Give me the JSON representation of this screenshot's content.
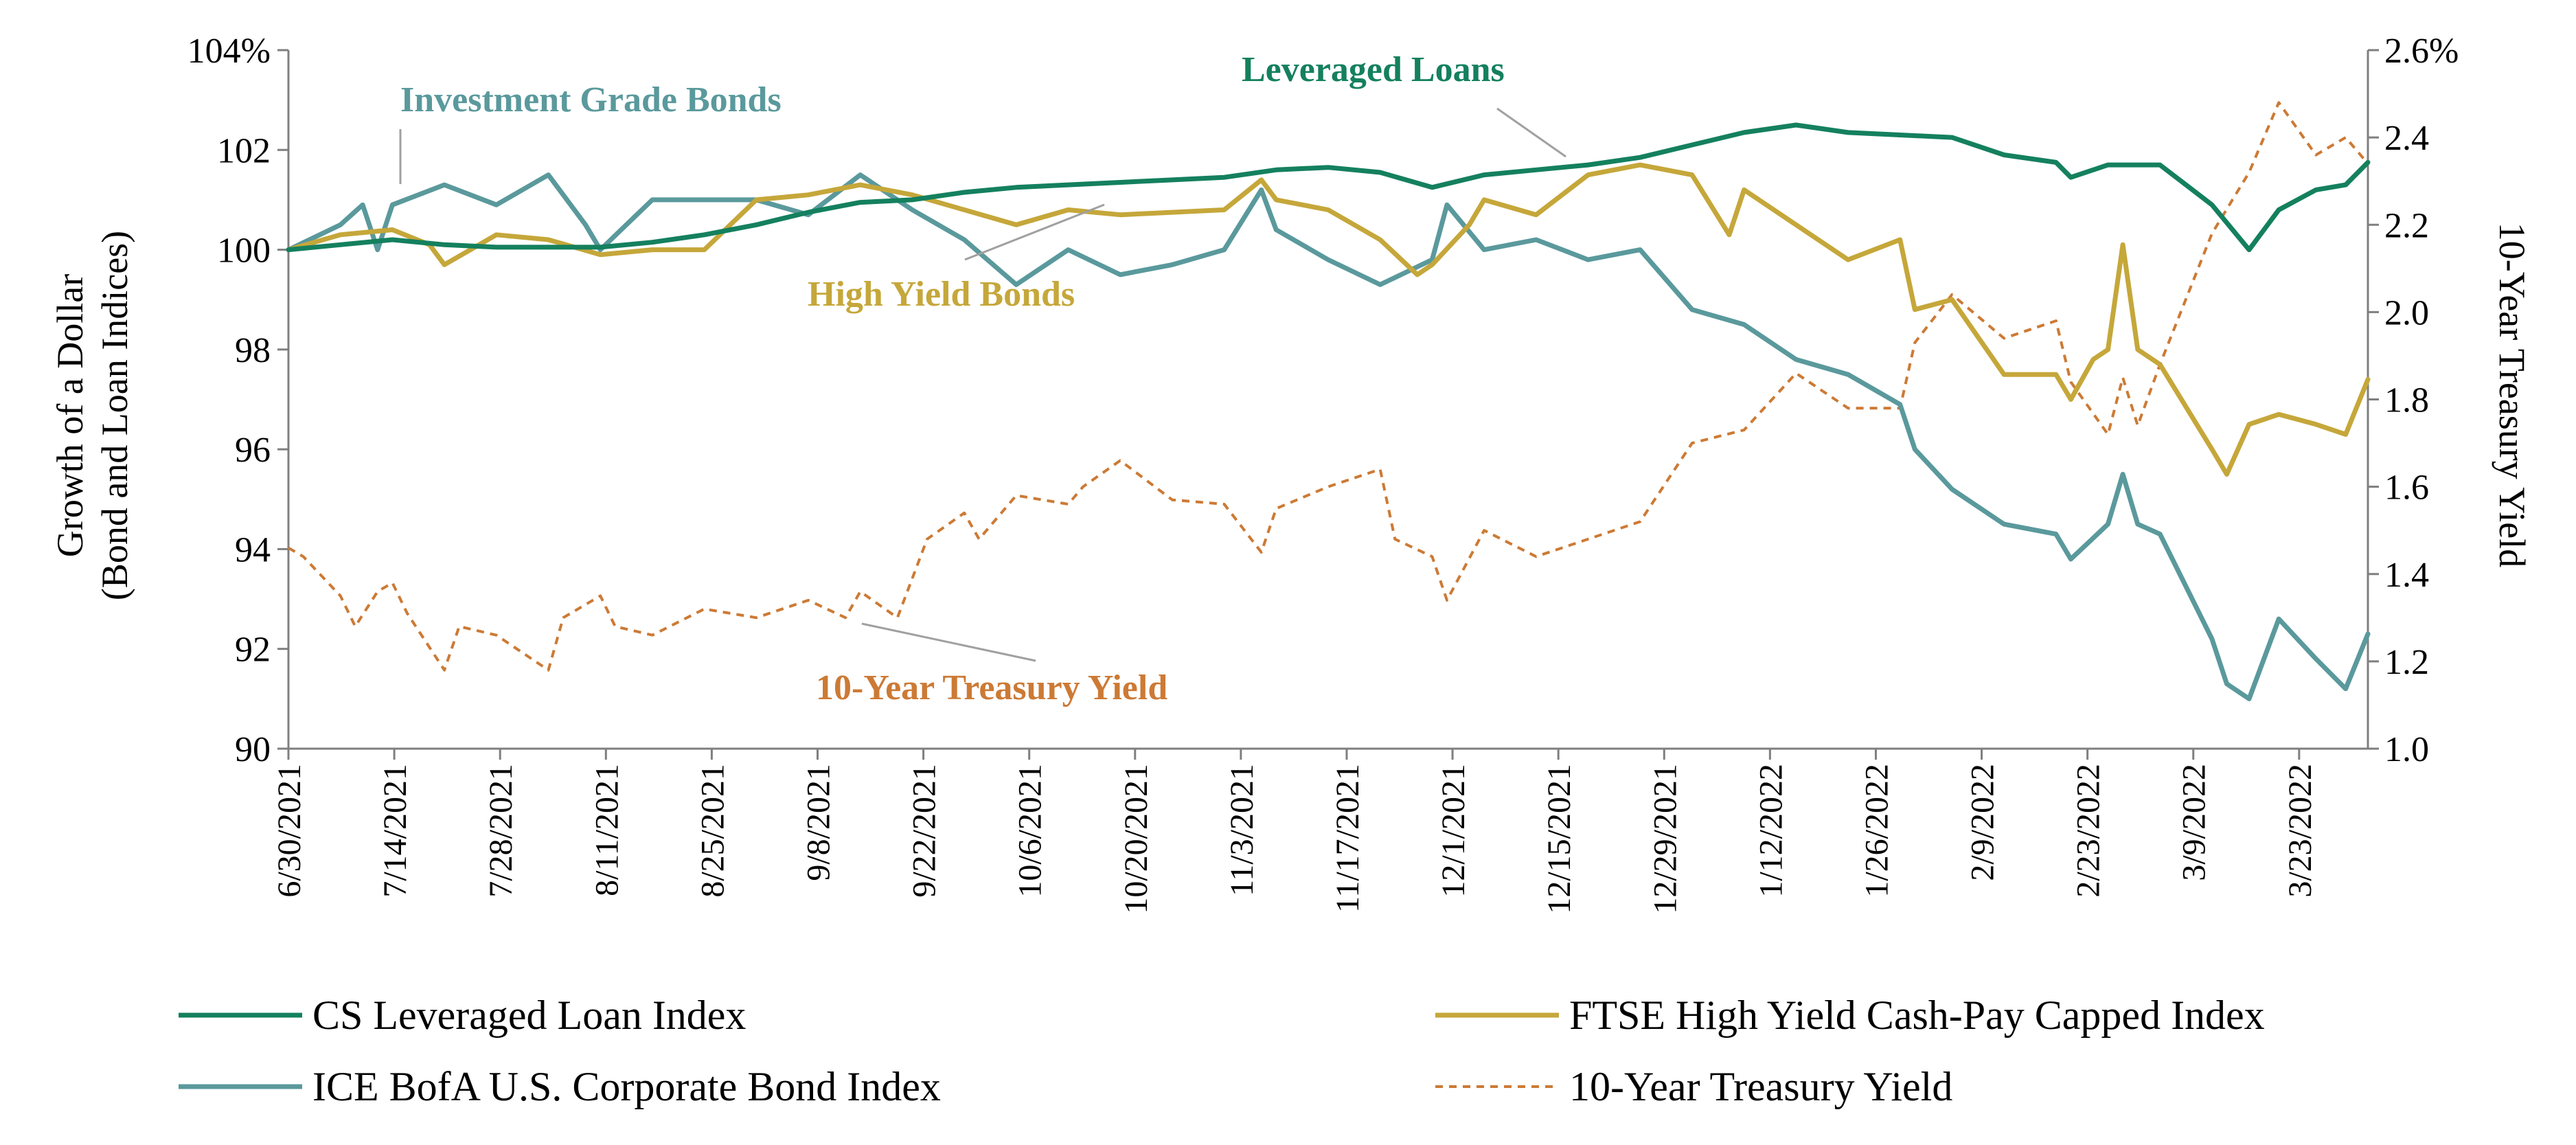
{
  "chart_data": {
    "type": "line",
    "x_tick_labels": [
      "6/30/2021",
      "7/14/2021",
      "7/28/2021",
      "8/11/2021",
      "8/25/2021",
      "9/8/2021",
      "9/22/2021",
      "10/6/2021",
      "10/20/2021",
      "11/3/2021",
      "11/17/2021",
      "12/1/2021",
      "12/15/2021",
      "12/29/2021",
      "1/12/2022",
      "1/26/2022",
      "2/9/2022",
      "2/23/2022",
      "3/9/2022",
      "3/23/2022"
    ],
    "x_range": [
      "2021-06-30",
      "2022-04-06"
    ],
    "y_left": {
      "label_lines": [
        "Growth of a Dollar",
        "(Bond and Loan Indices)"
      ],
      "ticks": [
        90,
        92,
        94,
        96,
        98,
        100,
        102,
        104
      ],
      "tick_labels": [
        "90",
        "92",
        "94",
        "96",
        "98",
        "100",
        "102",
        "104%"
      ],
      "range": [
        90,
        104
      ]
    },
    "y_right": {
      "label": "10-Year Treasury Yield",
      "ticks": [
        1.0,
        1.2,
        1.4,
        1.6,
        1.8,
        2.0,
        2.2,
        2.4,
        2.6
      ],
      "tick_labels": [
        "1.0",
        "1.2",
        "1.4",
        "1.6",
        "1.8",
        "2.0",
        "2.2",
        "2.4",
        "2.6%"
      ],
      "range": [
        1.0,
        2.6
      ]
    },
    "grid": false,
    "legend_position": "bottom",
    "series": [
      {
        "name": "CS Leveraged Loan Index",
        "axis": "left",
        "color": "#14805e",
        "style": "solid",
        "annotation": "Leveraged Loans",
        "points": [
          [
            "2021-06-30",
            100.0
          ],
          [
            "2021-07-07",
            100.1
          ],
          [
            "2021-07-14",
            100.2
          ],
          [
            "2021-07-21",
            100.1
          ],
          [
            "2021-07-28",
            100.05
          ],
          [
            "2021-08-04",
            100.05
          ],
          [
            "2021-08-11",
            100.05
          ],
          [
            "2021-08-18",
            100.15
          ],
          [
            "2021-08-25",
            100.3
          ],
          [
            "2021-09-01",
            100.5
          ],
          [
            "2021-09-08",
            100.75
          ],
          [
            "2021-09-15",
            100.95
          ],
          [
            "2021-09-22",
            101.0
          ],
          [
            "2021-09-29",
            101.15
          ],
          [
            "2021-10-06",
            101.25
          ],
          [
            "2021-10-13",
            101.3
          ],
          [
            "2021-10-20",
            101.35
          ],
          [
            "2021-10-27",
            101.4
          ],
          [
            "2021-11-03",
            101.45
          ],
          [
            "2021-11-10",
            101.6
          ],
          [
            "2021-11-17",
            101.65
          ],
          [
            "2021-11-24",
            101.55
          ],
          [
            "2021-12-01",
            101.25
          ],
          [
            "2021-12-08",
            101.5
          ],
          [
            "2021-12-15",
            101.6
          ],
          [
            "2021-12-22",
            101.7
          ],
          [
            "2021-12-29",
            101.85
          ],
          [
            "2022-01-05",
            102.1
          ],
          [
            "2022-01-12",
            102.35
          ],
          [
            "2022-01-19",
            102.5
          ],
          [
            "2022-01-26",
            102.35
          ],
          [
            "2022-02-02",
            102.3
          ],
          [
            "2022-02-09",
            102.25
          ],
          [
            "2022-02-16",
            101.9
          ],
          [
            "2022-02-23",
            101.75
          ],
          [
            "2022-02-25",
            101.45
          ],
          [
            "2022-03-02",
            101.7
          ],
          [
            "2022-03-09",
            101.7
          ],
          [
            "2022-03-16",
            100.9
          ],
          [
            "2022-03-21",
            100.0
          ],
          [
            "2022-03-25",
            100.8
          ],
          [
            "2022-03-30",
            101.2
          ],
          [
            "2022-04-03",
            101.3
          ],
          [
            "2022-04-06",
            101.75
          ]
        ]
      },
      {
        "name": "FTSE High Yield Cash-Pay Capped Index",
        "axis": "left",
        "color": "#c5a73a",
        "style": "solid",
        "annotation": "High Yield Bonds",
        "points": [
          [
            "2021-06-30",
            100.0
          ],
          [
            "2021-07-07",
            100.3
          ],
          [
            "2021-07-14",
            100.4
          ],
          [
            "2021-07-19",
            100.1
          ],
          [
            "2021-07-21",
            99.7
          ],
          [
            "2021-07-28",
            100.3
          ],
          [
            "2021-08-04",
            100.2
          ],
          [
            "2021-08-11",
            99.9
          ],
          [
            "2021-08-18",
            100.0
          ],
          [
            "2021-08-25",
            100.0
          ],
          [
            "2021-09-01",
            101.0
          ],
          [
            "2021-09-08",
            101.1
          ],
          [
            "2021-09-15",
            101.3
          ],
          [
            "2021-09-22",
            101.1
          ],
          [
            "2021-09-29",
            100.8
          ],
          [
            "2021-10-06",
            100.5
          ],
          [
            "2021-10-13",
            100.8
          ],
          [
            "2021-10-20",
            100.7
          ],
          [
            "2021-10-27",
            100.75
          ],
          [
            "2021-11-03",
            100.8
          ],
          [
            "2021-11-08",
            101.4
          ],
          [
            "2021-11-10",
            101.0
          ],
          [
            "2021-11-17",
            100.8
          ],
          [
            "2021-11-24",
            100.2
          ],
          [
            "2021-11-29",
            99.5
          ],
          [
            "2021-12-01",
            99.7
          ],
          [
            "2021-12-06",
            100.5
          ],
          [
            "2021-12-08",
            101.0
          ],
          [
            "2021-12-15",
            100.7
          ],
          [
            "2021-12-22",
            101.5
          ],
          [
            "2021-12-29",
            101.7
          ],
          [
            "2022-01-05",
            101.5
          ],
          [
            "2022-01-10",
            100.3
          ],
          [
            "2022-01-12",
            101.2
          ],
          [
            "2022-01-19",
            100.5
          ],
          [
            "2022-01-24",
            100.0
          ],
          [
            "2022-01-26",
            99.8
          ],
          [
            "2022-02-02",
            100.2
          ],
          [
            "2022-02-04",
            98.8
          ],
          [
            "2022-02-09",
            99.0
          ],
          [
            "2022-02-16",
            97.5
          ],
          [
            "2022-02-23",
            97.5
          ],
          [
            "2022-02-25",
            97.0
          ],
          [
            "2022-02-28",
            97.8
          ],
          [
            "2022-03-02",
            98.0
          ],
          [
            "2022-03-04",
            100.1
          ],
          [
            "2022-03-06",
            98.0
          ],
          [
            "2022-03-09",
            97.7
          ],
          [
            "2022-03-16",
            96.0
          ],
          [
            "2022-03-18",
            95.5
          ],
          [
            "2022-03-21",
            96.5
          ],
          [
            "2022-03-25",
            96.7
          ],
          [
            "2022-03-30",
            96.5
          ],
          [
            "2022-04-03",
            96.3
          ],
          [
            "2022-04-06",
            97.4
          ]
        ]
      },
      {
        "name": "ICE BofA U.S. Corporate Bond Index",
        "axis": "left",
        "color": "#5a999c",
        "style": "solid",
        "annotation": "Investment Grade Bonds",
        "points": [
          [
            "2021-06-30",
            100.0
          ],
          [
            "2021-07-07",
            100.5
          ],
          [
            "2021-07-10",
            100.9
          ],
          [
            "2021-07-12",
            100.0
          ],
          [
            "2021-07-14",
            100.9
          ],
          [
            "2021-07-21",
            101.3
          ],
          [
            "2021-07-28",
            100.9
          ],
          [
            "2021-08-04",
            101.5
          ],
          [
            "2021-08-09",
            100.5
          ],
          [
            "2021-08-11",
            100.0
          ],
          [
            "2021-08-18",
            101.0
          ],
          [
            "2021-08-25",
            101.0
          ],
          [
            "2021-09-01",
            101.0
          ],
          [
            "2021-09-08",
            100.7
          ],
          [
            "2021-09-15",
            101.5
          ],
          [
            "2021-09-22",
            100.8
          ],
          [
            "2021-09-29",
            100.2
          ],
          [
            "2021-10-06",
            99.3
          ],
          [
            "2021-10-13",
            100.0
          ],
          [
            "2021-10-20",
            99.5
          ],
          [
            "2021-10-27",
            99.7
          ],
          [
            "2021-11-03",
            100.0
          ],
          [
            "2021-11-08",
            101.2
          ],
          [
            "2021-11-10",
            100.4
          ],
          [
            "2021-11-17",
            99.8
          ],
          [
            "2021-11-24",
            99.3
          ],
          [
            "2021-12-01",
            99.8
          ],
          [
            "2021-12-03",
            100.9
          ],
          [
            "2021-12-08",
            100.0
          ],
          [
            "2021-12-15",
            100.2
          ],
          [
            "2021-12-22",
            99.8
          ],
          [
            "2021-12-29",
            100.0
          ],
          [
            "2022-01-05",
            98.8
          ],
          [
            "2022-01-12",
            98.5
          ],
          [
            "2022-01-19",
            97.8
          ],
          [
            "2022-01-26",
            97.5
          ],
          [
            "2022-02-02",
            96.9
          ],
          [
            "2022-02-04",
            96.0
          ],
          [
            "2022-02-09",
            95.2
          ],
          [
            "2022-02-16",
            94.5
          ],
          [
            "2022-02-23",
            94.3
          ],
          [
            "2022-02-25",
            93.8
          ],
          [
            "2022-03-02",
            94.5
          ],
          [
            "2022-03-04",
            95.5
          ],
          [
            "2022-03-06",
            94.5
          ],
          [
            "2022-03-09",
            94.3
          ],
          [
            "2022-03-16",
            92.2
          ],
          [
            "2022-03-18",
            91.3
          ],
          [
            "2022-03-21",
            91.0
          ],
          [
            "2022-03-25",
            92.6
          ],
          [
            "2022-03-30",
            91.8
          ],
          [
            "2022-04-03",
            91.2
          ],
          [
            "2022-04-06",
            92.3
          ]
        ]
      },
      {
        "name": "10-Year Treasury Yield",
        "axis": "right",
        "color": "#cc7a35",
        "style": "dashed",
        "annotation": "10-Year Treasury Yield",
        "points": [
          [
            "2021-06-30",
            1.46
          ],
          [
            "2021-07-02",
            1.44
          ],
          [
            "2021-07-07",
            1.35
          ],
          [
            "2021-07-09",
            1.28
          ],
          [
            "2021-07-12",
            1.36
          ],
          [
            "2021-07-14",
            1.38
          ],
          [
            "2021-07-16",
            1.31
          ],
          [
            "2021-07-21",
            1.18
          ],
          [
            "2021-07-23",
            1.28
          ],
          [
            "2021-07-28",
            1.26
          ],
          [
            "2021-08-04",
            1.18
          ],
          [
            "2021-08-06",
            1.3
          ],
          [
            "2021-08-11",
            1.35
          ],
          [
            "2021-08-13",
            1.28
          ],
          [
            "2021-08-18",
            1.26
          ],
          [
            "2021-08-25",
            1.32
          ],
          [
            "2021-09-01",
            1.3
          ],
          [
            "2021-09-08",
            1.34
          ],
          [
            "2021-09-13",
            1.3
          ],
          [
            "2021-09-15",
            1.36
          ],
          [
            "2021-09-20",
            1.3
          ],
          [
            "2021-09-24",
            1.48
          ],
          [
            "2021-09-29",
            1.54
          ],
          [
            "2021-10-01",
            1.48
          ],
          [
            "2021-10-06",
            1.58
          ],
          [
            "2021-10-13",
            1.56
          ],
          [
            "2021-10-15",
            1.6
          ],
          [
            "2021-10-20",
            1.66
          ],
          [
            "2021-10-27",
            1.57
          ],
          [
            "2021-11-03",
            1.56
          ],
          [
            "2021-11-08",
            1.45
          ],
          [
            "2021-11-10",
            1.55
          ],
          [
            "2021-11-17",
            1.6
          ],
          [
            "2021-11-24",
            1.64
          ],
          [
            "2021-11-26",
            1.48
          ],
          [
            "2021-12-01",
            1.44
          ],
          [
            "2021-12-03",
            1.34
          ],
          [
            "2021-12-08",
            1.5
          ],
          [
            "2021-12-15",
            1.44
          ],
          [
            "2021-12-22",
            1.48
          ],
          [
            "2021-12-29",
            1.52
          ],
          [
            "2022-01-05",
            1.7
          ],
          [
            "2022-01-12",
            1.73
          ],
          [
            "2022-01-19",
            1.86
          ],
          [
            "2022-01-26",
            1.78
          ],
          [
            "2022-02-02",
            1.78
          ],
          [
            "2022-02-04",
            1.93
          ],
          [
            "2022-02-09",
            2.04
          ],
          [
            "2022-02-16",
            1.94
          ],
          [
            "2022-02-23",
            1.98
          ],
          [
            "2022-02-25",
            1.84
          ],
          [
            "2022-03-02",
            1.72
          ],
          [
            "2022-03-04",
            1.85
          ],
          [
            "2022-03-06",
            1.74
          ],
          [
            "2022-03-09",
            1.88
          ],
          [
            "2022-03-16",
            2.18
          ],
          [
            "2022-03-21",
            2.32
          ],
          [
            "2022-03-25",
            2.48
          ],
          [
            "2022-03-30",
            2.36
          ],
          [
            "2022-04-03",
            2.4
          ],
          [
            "2022-04-06",
            2.34
          ]
        ]
      }
    ],
    "legend": [
      {
        "name": "CS Leveraged Loan Index",
        "color": "#14805e",
        "style": "solid"
      },
      {
        "name": "FTSE High Yield Cash-Pay Capped Index",
        "color": "#c5a73a",
        "style": "solid"
      },
      {
        "name": "ICE BofA U.S. Corporate Bond Index",
        "color": "#5a999c",
        "style": "solid"
      },
      {
        "name": "10-Year Treasury Yield",
        "color": "#cc7a35",
        "style": "dashed"
      }
    ]
  }
}
